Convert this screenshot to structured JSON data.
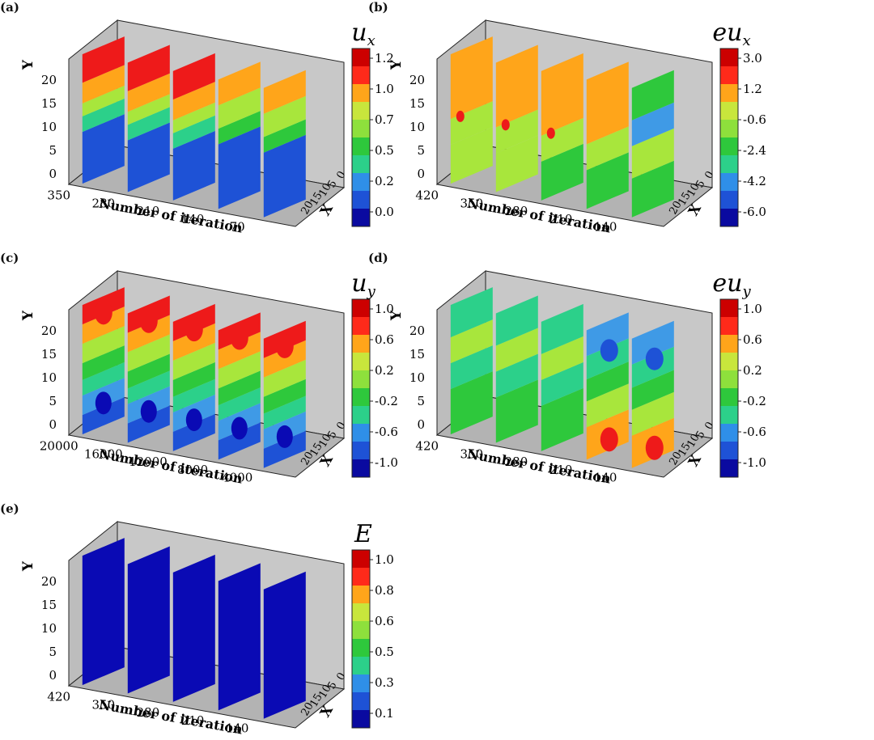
{
  "figure": {
    "panels": [
      {
        "label": "(a)",
        "colorbar_title_base": "u",
        "colorbar_title_prefix": "",
        "colorbar_title_sub": "x",
        "colorbar_ticks": [
          "1.2",
          "1.0",
          "0.7",
          "0.5",
          "0.2",
          "0.0"
        ],
        "x_axis_title": "Number of iteration",
        "x_ticks": [
          "350",
          "280",
          "210",
          "140",
          "70"
        ],
        "y_axis_title": "Y",
        "y_ticks": [
          "20",
          "15",
          "10",
          "5",
          "0"
        ],
        "depth_axis_title": "X",
        "depth_ticks": [
          "0",
          "5",
          "10",
          "15",
          "20"
        ]
      },
      {
        "label": "(b)",
        "colorbar_title_base": "u",
        "colorbar_title_prefix": "e",
        "colorbar_title_sub": "x",
        "colorbar_ticks": [
          "3.0",
          "1.2",
          "-0.6",
          "-2.4",
          "-4.2",
          "-6.0"
        ],
        "x_axis_title": "Number of iteration",
        "x_ticks": [
          "420",
          "350",
          "280",
          "210",
          "140"
        ],
        "y_axis_title": "Y",
        "y_ticks": [
          "20",
          "15",
          "10",
          "5",
          "0"
        ],
        "depth_axis_title": "X",
        "depth_ticks": [
          "0",
          "5",
          "10",
          "15",
          "20"
        ]
      },
      {
        "label": "(c)",
        "colorbar_title_base": "u",
        "colorbar_title_prefix": "",
        "colorbar_title_sub": "y",
        "colorbar_ticks": [
          "1.0",
          "0.6",
          "0.2",
          "-0.2",
          "-0.6",
          "-1.0"
        ],
        "x_axis_title": "Number of iteration",
        "x_ticks": [
          "20000",
          "16000",
          "12000",
          "8000",
          "4000"
        ],
        "y_axis_title": "Y",
        "y_ticks": [
          "20",
          "15",
          "10",
          "5",
          "0"
        ],
        "depth_axis_title": "X",
        "depth_ticks": [
          "0",
          "5",
          "10",
          "15",
          "20"
        ]
      },
      {
        "label": "(d)",
        "colorbar_title_base": "u",
        "colorbar_title_prefix": "e",
        "colorbar_title_sub": "y",
        "colorbar_ticks": [
          "1.0",
          "0.6",
          "0.2",
          "-0.2",
          "-0.6",
          "-1.0"
        ],
        "x_axis_title": "Number of iteration",
        "x_ticks": [
          "420",
          "350",
          "280",
          "210",
          "140"
        ],
        "y_axis_title": "Y",
        "y_ticks": [
          "20",
          "15",
          "10",
          "5",
          "0"
        ],
        "depth_axis_title": "X",
        "depth_ticks": [
          "0",
          "5",
          "10",
          "15",
          "20"
        ]
      },
      {
        "label": "(e)",
        "colorbar_title_base": "E",
        "colorbar_title_prefix": "",
        "colorbar_title_sub": "",
        "colorbar_ticks": [
          "1.0",
          "0.8",
          "0.6",
          "0.5",
          "0.3",
          "0.1"
        ],
        "x_axis_title": "Number of iteration",
        "x_ticks": [
          "420",
          "350",
          "280",
          "210",
          "140"
        ],
        "y_axis_title": "Y",
        "y_ticks": [
          "20",
          "15",
          "10",
          "5",
          "0"
        ],
        "depth_axis_title": "X",
        "depth_ticks": [
          "0",
          "5",
          "10",
          "15",
          "20"
        ]
      }
    ],
    "colormap": [
      "#cc0000",
      "#ff2a1a",
      "#ffa51a",
      "#c8e63c",
      "#8ee03c",
      "#2ec83c",
      "#2cd08a",
      "#2f8fe8",
      "#1e52d6",
      "#0a0aa0"
    ],
    "slice_colors": {
      "red": "#ee1a1a",
      "orange": "#ffa51a",
      "lime": "#a8e63c",
      "green": "#2ec83c",
      "teal": "#2cd08a",
      "lightblue": "#3f9ae6",
      "blue": "#1e52d6",
      "navy": "#0a0ab4"
    }
  },
  "chart_data": [
    {
      "type": "3d-slice-contour",
      "panel": "(a)",
      "title": "u_x",
      "xlabel": "Number of iteration",
      "ylabel": "Y",
      "zlabel": "X",
      "slice_iterations": [
        350,
        280,
        210,
        140,
        70
      ],
      "y_range": [
        0,
        20
      ],
      "x_range": [
        0,
        20
      ],
      "colorbar_levels": [
        1.2,
        1.0,
        0.7,
        0.5,
        0.2,
        0.0
      ]
    },
    {
      "type": "3d-slice-contour",
      "panel": "(b)",
      "title": "eu_x",
      "xlabel": "Number of iteration",
      "ylabel": "Y",
      "zlabel": "X",
      "slice_iterations": [
        420,
        350,
        280,
        210,
        140
      ],
      "y_range": [
        0,
        20
      ],
      "x_range": [
        0,
        20
      ],
      "colorbar_levels": [
        3.0,
        1.2,
        -0.6,
        -2.4,
        -4.2,
        -6.0
      ]
    },
    {
      "type": "3d-slice-contour",
      "panel": "(c)",
      "title": "u_y",
      "xlabel": "Number of iteration",
      "ylabel": "Y",
      "zlabel": "X",
      "slice_iterations": [
        20000,
        16000,
        12000,
        8000,
        4000
      ],
      "y_range": [
        0,
        20
      ],
      "x_range": [
        0,
        20
      ],
      "colorbar_levels": [
        1.0,
        0.6,
        0.2,
        -0.2,
        -0.6,
        -1.0
      ]
    },
    {
      "type": "3d-slice-contour",
      "panel": "(d)",
      "title": "eu_y",
      "xlabel": "Number of iteration",
      "ylabel": "Y",
      "zlabel": "X",
      "slice_iterations": [
        420,
        350,
        280,
        210,
        140
      ],
      "y_range": [
        0,
        20
      ],
      "x_range": [
        0,
        20
      ],
      "colorbar_levels": [
        1.0,
        0.6,
        0.2,
        -0.2,
        -0.6,
        -1.0
      ]
    },
    {
      "type": "3d-slice-contour",
      "panel": "(e)",
      "title": "E",
      "xlabel": "Number of iteration",
      "ylabel": "Y",
      "zlabel": "X",
      "slice_iterations": [
        420,
        350,
        280,
        210,
        140
      ],
      "y_range": [
        0,
        20
      ],
      "x_range": [
        0,
        20
      ],
      "colorbar_levels": [
        1.0,
        0.8,
        0.6,
        0.5,
        0.3,
        0.1
      ]
    }
  ]
}
